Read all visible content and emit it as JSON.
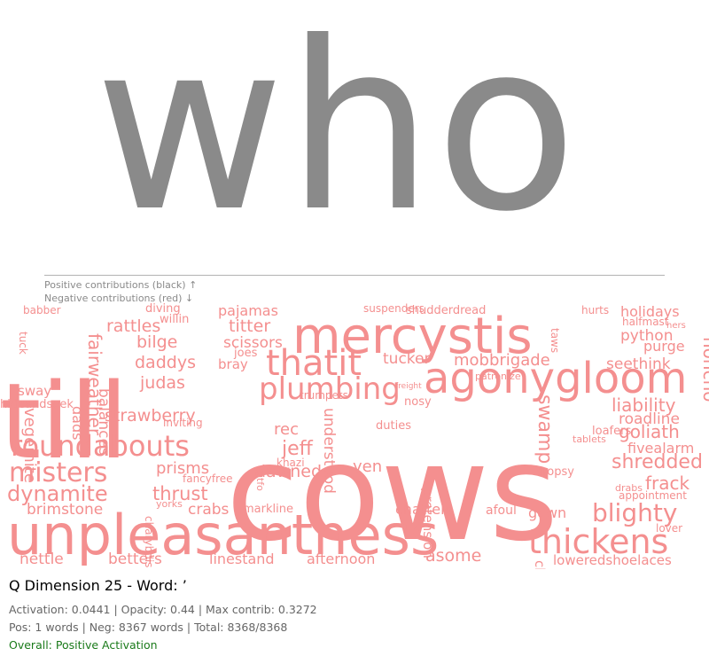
{
  "hero_word": "who",
  "legend": {
    "positive": "Positive contributions (black) ↑",
    "negative": "Negative contributions (red) ↓"
  },
  "cloud_color": "#f48f8f",
  "cloud_words": [
    "cows",
    "till",
    "unpleasantness",
    "mercystis",
    "agonygloom",
    "thatit",
    "plumbing",
    "roundabouts",
    "misters",
    "thickens",
    "blighty",
    "dynamite",
    "strawberry",
    "honcho",
    "liability",
    "rattles",
    "daddys",
    "judas",
    "bilge",
    "scissors",
    "titter",
    "pajamas",
    "shredded",
    "goliath",
    "frack",
    "holidays",
    "python",
    "purge",
    "seethink",
    "roadline",
    "fivealarm",
    "mobbrigade",
    "tucker",
    "jeff",
    "rec",
    "understood",
    "yen",
    "swamp",
    "dawned",
    "prisms",
    "thrust",
    "crabs",
    "brimstone",
    "nettle",
    "betters",
    "linestand",
    "afternoon",
    "asome",
    "gown",
    "loweredshoelaces",
    "chattels",
    "afoul",
    "markline",
    "lover",
    "drabs",
    "appointment",
    "dropsy",
    "loafers",
    "tablets",
    "cheerful",
    "pretension",
    "fancyfree",
    "sway",
    "tuck",
    "babber",
    "diving",
    "willin",
    "bray",
    "joes",
    "duties",
    "nosy",
    "trumpets",
    "suspenders",
    "shudderdread",
    "hurts",
    "halfmast",
    "hers",
    "taws",
    "fairweather",
    "vegemite",
    "balances",
    "dads",
    "hideandseek",
    "gtfo",
    "khazi",
    "charybdis",
    "yorks",
    "inviting",
    "patronize",
    "freight",
    "python"
  ],
  "info": {
    "title": "Q Dimension 25 - Word: ’",
    "activation": "Activation: 0.0441 | Opacity: 0.44 | Max contrib: 0.3272",
    "counts": "Pos: 1 words | Neg: 8367 words | Total: 8368/8368",
    "overall": "Overall: Positive Activation"
  }
}
